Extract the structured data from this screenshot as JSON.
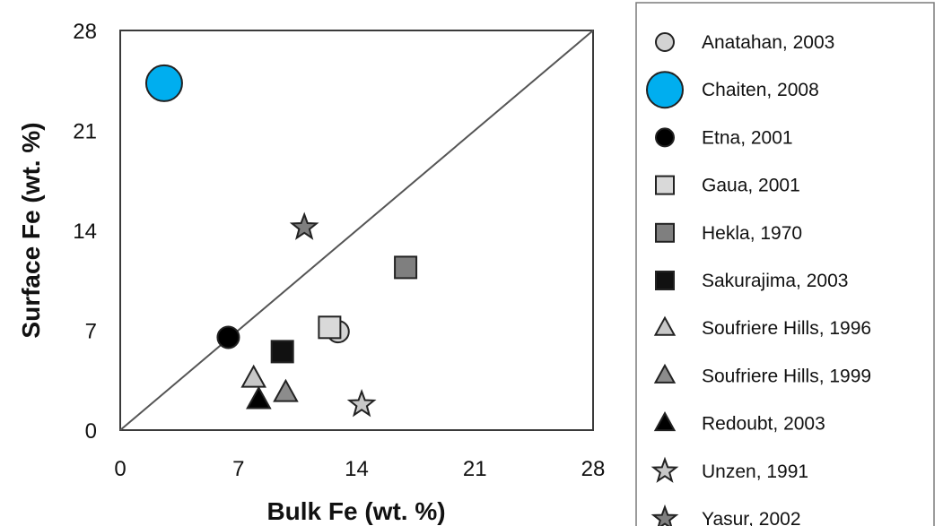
{
  "chart_data": {
    "type": "scatter",
    "xlabel": "Bulk Fe (wt. %)",
    "ylabel": "Surface Fe (wt. %)",
    "xlim": [
      0,
      28
    ],
    "ylim": [
      0,
      28
    ],
    "xticks": [
      0,
      7,
      14,
      21,
      28
    ],
    "yticks": [
      0,
      7,
      14,
      21,
      28
    ],
    "grid": false,
    "legend_position": "right",
    "reference_line": {
      "type": "1:1",
      "from": [
        0,
        0
      ],
      "to": [
        28,
        28
      ]
    },
    "series": [
      {
        "name": "Anatahan, 2003",
        "marker": "circle",
        "color": "#d3d3d3",
        "size": "medium",
        "points": [
          [
            12.9,
            6.9
          ]
        ]
      },
      {
        "name": "Chaiten, 2008",
        "marker": "circle",
        "color": "#00aeef",
        "size": "large",
        "points": [
          [
            2.6,
            24.3
          ]
        ]
      },
      {
        "name": "Etna, 2001",
        "marker": "circle",
        "color": "#000000",
        "size": "medium",
        "points": [
          [
            6.4,
            6.5
          ]
        ]
      },
      {
        "name": "Gaua, 2001",
        "marker": "square",
        "color": "#d9d9d9",
        "size": "medium",
        "points": [
          [
            12.4,
            7.2
          ]
        ]
      },
      {
        "name": "Hekla, 1970",
        "marker": "square",
        "color": "#7f7f7f",
        "size": "medium",
        "points": [
          [
            16.9,
            11.4
          ]
        ]
      },
      {
        "name": "Sakurajima, 2003",
        "marker": "square",
        "color": "#111111",
        "size": "medium",
        "points": [
          [
            9.6,
            5.5
          ]
        ]
      },
      {
        "name": "Soufriere Hills, 1996",
        "marker": "triangle",
        "color": "#c8c8c8",
        "size": "medium",
        "points": [
          [
            7.9,
            3.6
          ]
        ]
      },
      {
        "name": "Soufriere Hills, 1999",
        "marker": "triangle",
        "color": "#8c8c8c",
        "size": "medium",
        "points": [
          [
            9.8,
            2.6
          ]
        ]
      },
      {
        "name": "Redoubt, 2003",
        "marker": "triangle",
        "color": "#000000",
        "size": "medium",
        "points": [
          [
            8.2,
            2.1
          ]
        ]
      },
      {
        "name": "Unzen, 1991",
        "marker": "star",
        "color": "#c8c8c8",
        "size": "medium",
        "points": [
          [
            14.3,
            1.8
          ]
        ]
      },
      {
        "name": "Yasur, 2002",
        "marker": "star",
        "color": "#7f7f7f",
        "size": "medium",
        "points": [
          [
            10.9,
            14.2
          ]
        ]
      }
    ]
  }
}
